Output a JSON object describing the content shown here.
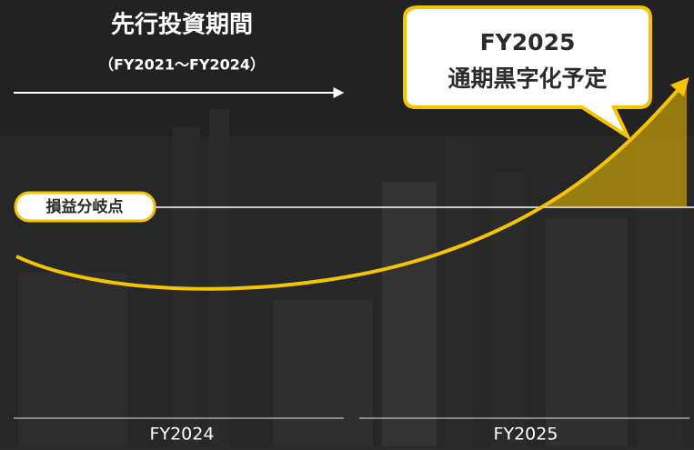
{
  "header": {
    "title": "先行投資期間",
    "period": "（FY2021〜FY2024）"
  },
  "callout": {
    "lines": [
      "FY2025",
      "通期黒字化予定"
    ]
  },
  "break_even": {
    "label": "損益分岐点"
  },
  "timeline": [
    "FY2024",
    "FY2025"
  ]
}
